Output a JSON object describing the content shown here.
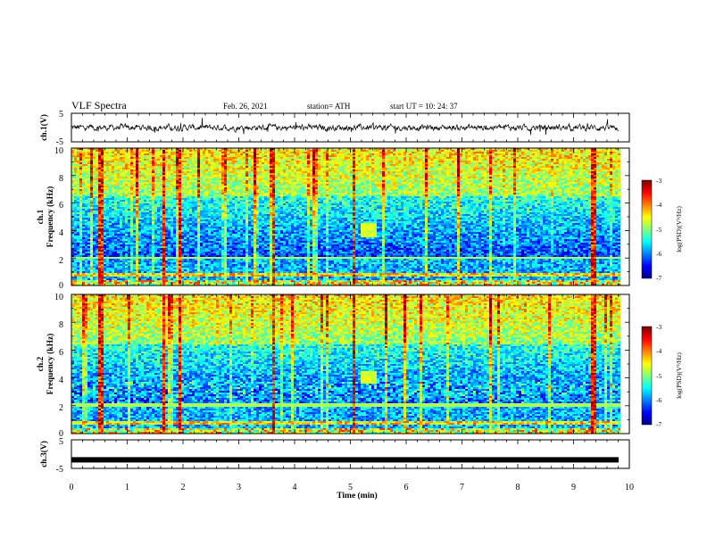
{
  "header": {
    "title": "VLF Spectra",
    "date": "Feb. 26, 2021",
    "station": "station= ATH",
    "start": "start  UT  =    10: 24: 37"
  },
  "chart_data": [
    {
      "type": "line",
      "name": "ch1-waveform",
      "ylabel": "ch.1(V)",
      "ylim": [
        -5,
        5
      ],
      "yticks": [
        "5",
        "-5"
      ],
      "xlim": [
        0,
        10
      ],
      "baseline_v": 0
    },
    {
      "type": "heatmap",
      "name": "ch1-spectrogram",
      "ylabel_1": "ch.1",
      "ylabel_2": "Frequency  (kHz)",
      "ylim": [
        0,
        10
      ],
      "yticks": [
        "0",
        "2",
        "4",
        "6",
        "8",
        "10"
      ],
      "xlim": [
        0,
        10
      ],
      "impulse_times_min": [
        0.5,
        1.63,
        1.93,
        3.6,
        5.05,
        9.33
      ],
      "emission_patch": {
        "t_start": 5.15,
        "t_end": 5.45,
        "f_low": 3.6,
        "f_high": 4.6
      },
      "colorbar": {
        "label": "log(PSD)(V²/Hz)",
        "ticks": [
          "-3",
          "-4",
          "-5",
          "-6",
          "-7"
        ],
        "range": [
          -7,
          -3
        ]
      }
    },
    {
      "type": "heatmap",
      "name": "ch2-spectrogram",
      "ylabel_1": "ch.2",
      "ylabel_2": "Frequency  (kHz)",
      "ylim": [
        0,
        10
      ],
      "yticks": [
        "0",
        "2",
        "4",
        "6",
        "8",
        "10"
      ],
      "xlim": [
        0,
        10
      ],
      "impulse_times_min": [
        0.5,
        1.63,
        1.93,
        3.6,
        5.05,
        9.33
      ],
      "emission_patch": {
        "t_start": 5.15,
        "t_end": 5.45,
        "f_low": 3.6,
        "f_high": 4.6
      },
      "colorbar": {
        "label": "log(PSD)(V²/Hz)",
        "ticks": [
          "-3",
          "-4",
          "-5",
          "-6",
          "-7"
        ],
        "range": [
          -7,
          -3
        ]
      }
    },
    {
      "type": "line",
      "name": "ch3-waveform",
      "ylabel": "ch.3(V)",
      "ylim": [
        -5,
        5
      ],
      "yticks": [
        "5",
        "-5"
      ],
      "xlim": [
        0,
        10
      ],
      "baseline_v": -2
    }
  ],
  "xaxis": {
    "label": "Time  (min)",
    "ticks": [
      "0",
      "1",
      "2",
      "3",
      "4",
      "5",
      "6",
      "7",
      "8",
      "9",
      "10"
    ]
  },
  "colors": {
    "trace": "#000000",
    "colormap": [
      "#00007f",
      "#0000ff",
      "#007fff",
      "#00ffff",
      "#7fff7f",
      "#ffff00",
      "#ff7f00",
      "#ff0000",
      "#7f0000"
    ]
  }
}
